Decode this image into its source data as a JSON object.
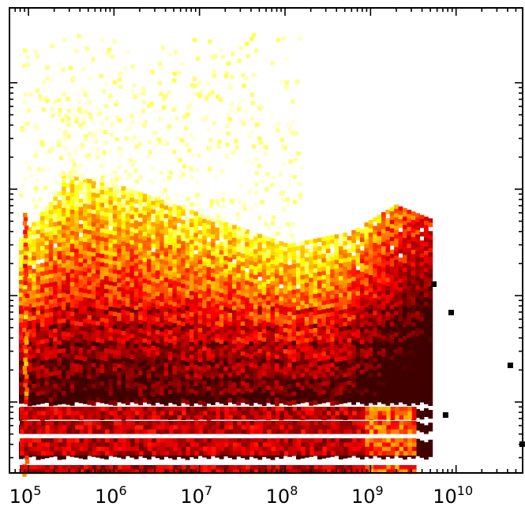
{
  "chart_data": {
    "type": "heatmap",
    "title": "",
    "xlabel": "",
    "ylabel": "",
    "xscale": "log",
    "yscale": "log",
    "xlim": [
      60000,
      60000000000
    ],
    "grid": false,
    "colormap": "hot",
    "x_tick_labels": [
      {
        "value": 100000,
        "base": "10",
        "exp": "5"
      },
      {
        "value": 1000000,
        "base": "10",
        "exp": "6"
      },
      {
        "value": 10000000,
        "base": "10",
        "exp": "7"
      },
      {
        "value": 100000000,
        "base": "10",
        "exp": "8"
      },
      {
        "value": 1000000000,
        "base": "10",
        "exp": "9"
      },
      {
        "value": 10000000000,
        "base": "10",
        "exp": "10"
      }
    ],
    "y_tick_labels": [],
    "density_description": {
      "x_extent": [
        60000,
        5000000000
      ],
      "outliers_x": [
        7000000000,
        40000000000,
        55000000000
      ]
    }
  }
}
